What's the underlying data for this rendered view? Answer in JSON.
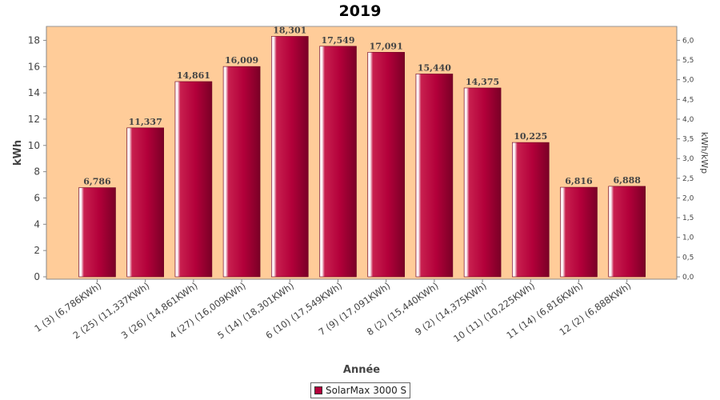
{
  "chart_data": {
    "type": "bar",
    "title": "2019",
    "xlabel": "Année",
    "ylabel": "kWh",
    "y2label": "kWh/kWp",
    "ylim": [
      0,
      19
    ],
    "yticks": [
      0,
      2,
      4,
      6,
      8,
      10,
      12,
      14,
      16,
      18
    ],
    "y2lim": [
      0,
      6.333
    ],
    "y2ticks": [
      "0,0",
      "0,5",
      "1,0",
      "1,5",
      "2,0",
      "2,5",
      "3,0",
      "3,5",
      "4,0",
      "4,5",
      "5,0",
      "5,5",
      "6,0"
    ],
    "categories": [
      "1 (3)  (6,786KWh)",
      "2 (25)  (11,337KWh)",
      "3 (26)  (14,861KWh)",
      "4 (27)  (16,009KWh)",
      "5 (14)  (18,301KWh)",
      "6 (10)  (17,549KWh)",
      "7 (9)  (17,091KWh)",
      "8 (2)  (15,440KWh)",
      "9 (2)  (14,375KWh)",
      "10 (11)  (10,225KWh)",
      "11 (14)  (6,816KWh)",
      "12 (2)  (6,888KWh)"
    ],
    "series": [
      {
        "name": "SolarMax 3000 S",
        "values": [
          6.786,
          11.337,
          14.861,
          16.009,
          18.301,
          17.549,
          17.091,
          15.44,
          14.375,
          10.225,
          6.816,
          6.888
        ],
        "labels": [
          "6,786",
          "11,337",
          "14,861",
          "16,009",
          "18,301",
          "17,549",
          "17,091",
          "15,440",
          "14,375",
          "10,225",
          "6,816",
          "6,888"
        ],
        "color": "#b3003a"
      }
    ],
    "legend_position": "bottom",
    "plot_background": "#ffcc99",
    "grid": false
  }
}
